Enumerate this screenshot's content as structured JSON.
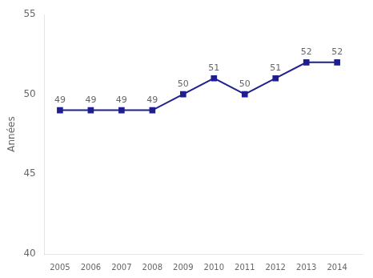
{
  "chart_data": {
    "type": "line",
    "x": [
      2005,
      2006,
      2007,
      2008,
      2009,
      2010,
      2011,
      2012,
      2013,
      2014
    ],
    "values": [
      49,
      49,
      49,
      49,
      50,
      51,
      50,
      51,
      52,
      52
    ],
    "color": "#1F1F8F",
    "marker": "square",
    "data_labels": true,
    "ylabel": "Années",
    "xlim": [
      2004.5,
      2014.8
    ],
    "xticks": [
      2005,
      2006,
      2007,
      2008,
      2009,
      2010,
      2011,
      2012,
      2013,
      2014
    ],
    "ylim": [
      40,
      55
    ],
    "yticks": [
      40,
      45,
      50,
      55
    ],
    "grid": false
  }
}
